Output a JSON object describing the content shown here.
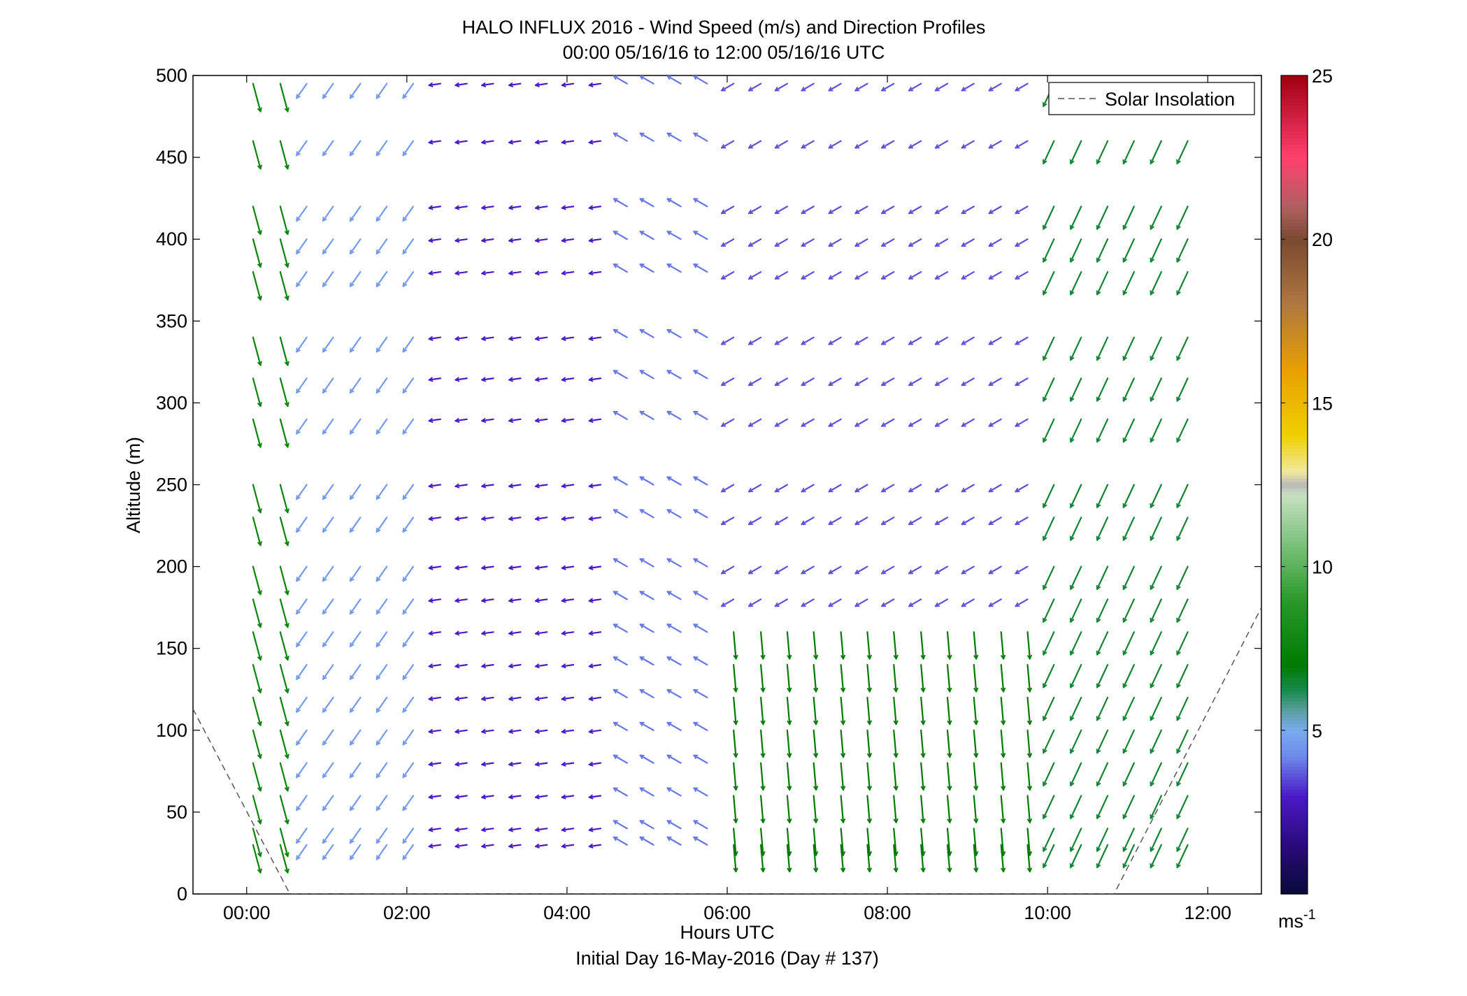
{
  "chart_data": {
    "type": "quiver",
    "title": "HALO INFLUX 2016 - Wind Speed (m/s) and Direction Profiles",
    "subtitle": "00:00 05/16/16 to 12:00 05/16/16  UTC",
    "xlabel": "Hours UTC",
    "xlabel2": "Initial Day 16-May-2016 (Day # 137)",
    "ylabel": "Altitude (m)",
    "xlim": [
      -0.67,
      12.67
    ],
    "ylim": [
      0,
      500
    ],
    "x_ticks": [
      0,
      2,
      4,
      6,
      8,
      10,
      12
    ],
    "x_tick_labels": [
      "00:00",
      "02:00",
      "04:00",
      "06:00",
      "08:00",
      "10:00",
      "12:00"
    ],
    "y_ticks": [
      0,
      50,
      100,
      150,
      200,
      250,
      300,
      350,
      400,
      450,
      500
    ],
    "y_tick_labels": [
      "0",
      "50",
      "100",
      "150",
      "200",
      "250",
      "300",
      "350",
      "400",
      "450",
      "500"
    ],
    "colorbar": {
      "min": 0,
      "max": 25,
      "ticks": [
        5,
        10,
        15,
        20,
        25
      ],
      "tick_labels": [
        "5",
        "10",
        "15",
        "20",
        "25"
      ],
      "unit_base": "ms",
      "unit_exp": "-1",
      "stops": [
        [
          0,
          "#0a0a3c"
        ],
        [
          1.5,
          "#2a0a7a"
        ],
        [
          3,
          "#4a1ac8"
        ],
        [
          4.2,
          "#6c8ae8"
        ],
        [
          5,
          "#78aaf0"
        ],
        [
          5.6,
          "#5aa0a0"
        ],
        [
          6.2,
          "#1a8a50"
        ],
        [
          7,
          "#007a00"
        ],
        [
          9,
          "#2a9a2a"
        ],
        [
          11,
          "#8ac88a"
        ],
        [
          12.2,
          "#c8e0c0"
        ],
        [
          12.5,
          "#b8b8b8"
        ],
        [
          12.9,
          "#f0e8a0"
        ],
        [
          14,
          "#f0d000"
        ],
        [
          16,
          "#e8a000"
        ],
        [
          18,
          "#b07840"
        ],
        [
          20,
          "#7a4a30"
        ],
        [
          21,
          "#b06060"
        ],
        [
          22.5,
          "#ff4070"
        ],
        [
          25,
          "#a00010"
        ]
      ]
    },
    "legend": {
      "entries": [
        "Solar Insolation"
      ],
      "placement": "top-right",
      "line_style": "dashed",
      "line_color": "#555555"
    },
    "solar_insolation": [
      {
        "x": -0.67,
        "y": 113
      },
      {
        "x": 0.54,
        "y": 0
      },
      {
        "x": 10.83,
        "y": 0
      },
      {
        "x": 12.67,
        "y": 175
      }
    ],
    "times_hr": [
      0.08,
      0.42,
      0.75,
      1.08,
      1.42,
      1.75,
      2.08,
      2.42,
      2.75,
      3.08,
      3.42,
      3.75,
      4.08,
      4.42,
      4.75,
      5.08,
      5.42,
      5.75,
      6.08,
      6.42,
      6.75,
      7.08,
      7.42,
      7.75,
      8.08,
      8.42,
      8.75,
      9.08,
      9.42,
      9.75,
      10.08,
      10.42,
      10.75,
      11.08,
      11.42,
      11.75
    ],
    "altitudes_m": [
      30,
      40,
      60,
      80,
      100,
      120,
      140,
      160,
      180,
      200,
      230,
      250,
      290,
      315,
      340,
      380,
      400,
      420,
      460,
      495
    ],
    "wind_regimes": [
      {
        "t_start": 0.0,
        "t_end": 0.6,
        "alt_min": 0,
        "alt_max": 500,
        "dir_deg": 165,
        "speed_ms": 7.5
      },
      {
        "t_start": 0.6,
        "t_end": 2.3,
        "alt_min": 0,
        "alt_max": 500,
        "dir_deg": 215,
        "speed_ms": 4.6
      },
      {
        "t_start": 2.3,
        "t_end": 4.6,
        "alt_min": 0,
        "alt_max": 500,
        "dir_deg": 262,
        "speed_ms": 3.0
      },
      {
        "t_start": 4.6,
        "t_end": 5.8,
        "alt_min": 0,
        "alt_max": 500,
        "dir_deg": 300,
        "speed_ms": 4.0
      },
      {
        "t_start": 5.8,
        "t_end": 9.8,
        "alt_min": 0,
        "alt_max": 180,
        "dir_deg": 175,
        "speed_ms": 7.0
      },
      {
        "t_start": 5.8,
        "t_end": 9.8,
        "alt_min": 180,
        "alt_max": 500,
        "dir_deg": 240,
        "speed_ms": 3.6
      },
      {
        "t_start": 9.8,
        "t_end": 12.0,
        "alt_min": 0,
        "alt_max": 500,
        "dir_deg": 205,
        "speed_ms": 6.5
      }
    ]
  }
}
